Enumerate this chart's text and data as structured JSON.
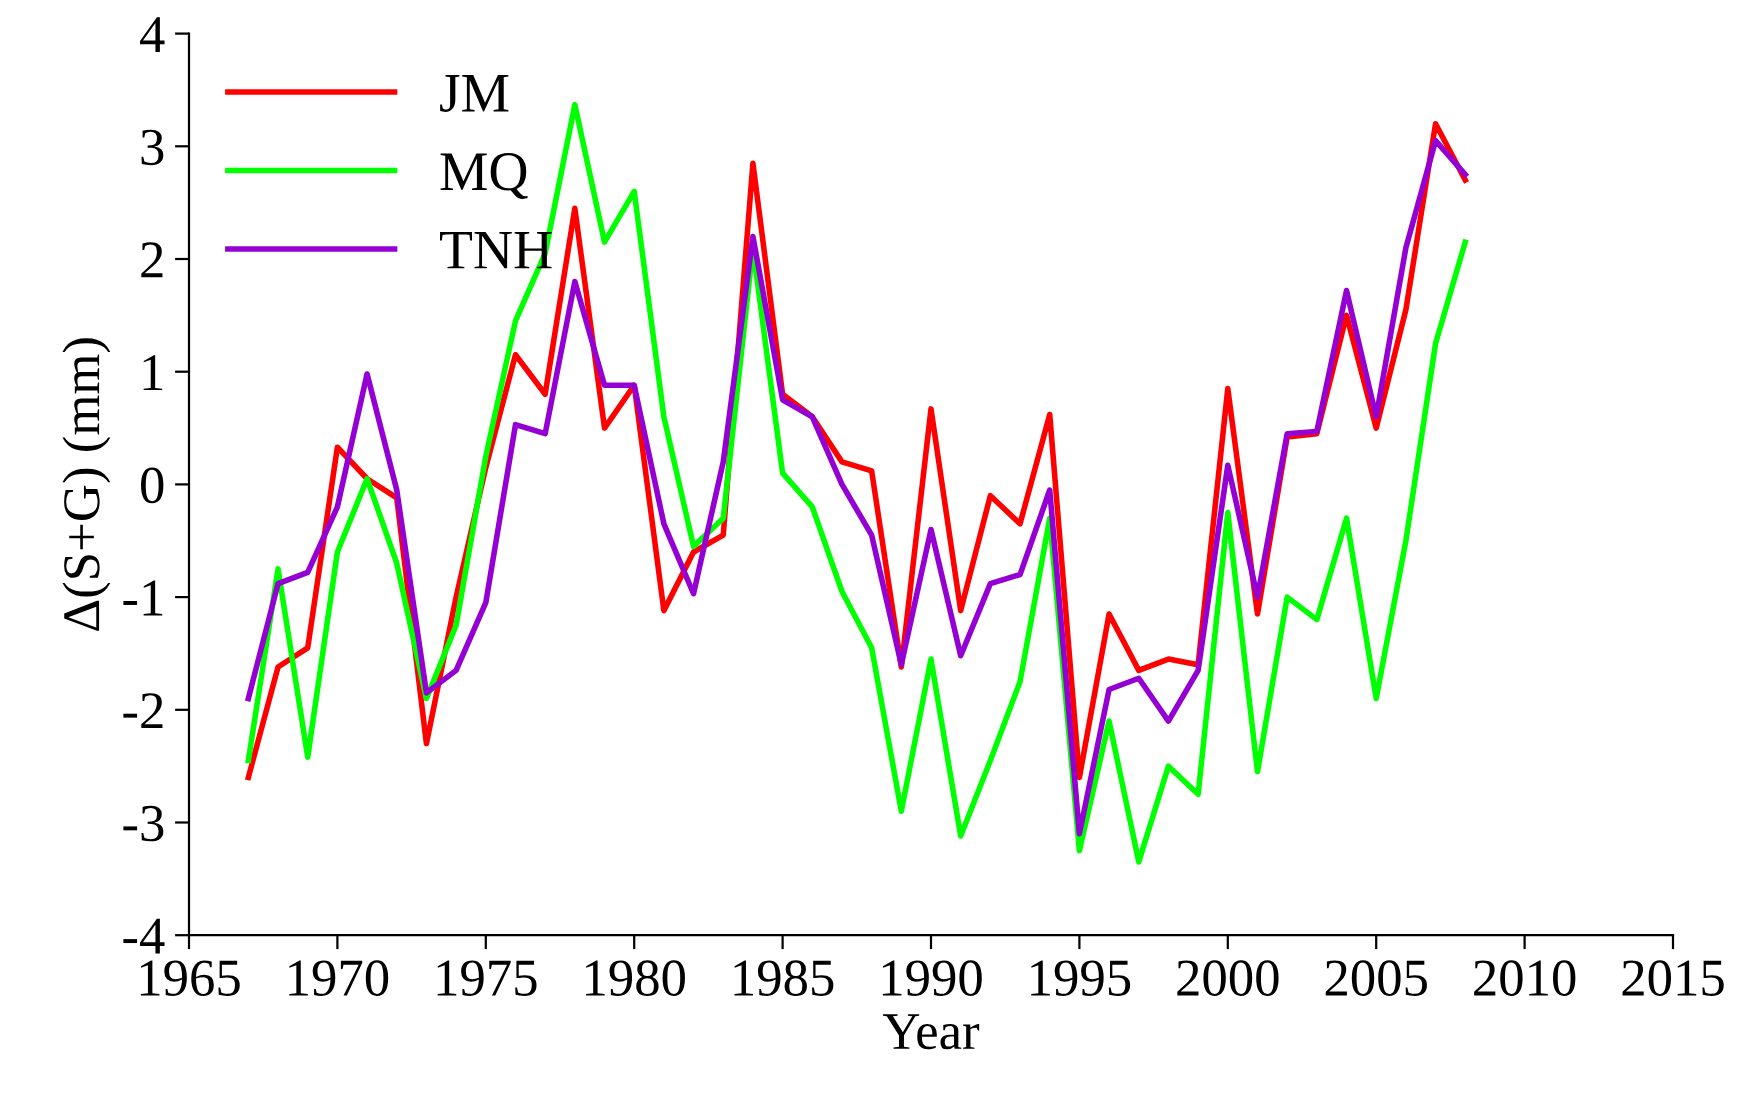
{
  "chart_data": {
    "type": "line",
    "xlabel": "Year",
    "ylabel": "Δ(S+G) (mm)",
    "x": [
      1967,
      1968,
      1969,
      1970,
      1971,
      1972,
      1973,
      1974,
      1975,
      1976,
      1977,
      1978,
      1979,
      1980,
      1981,
      1982,
      1983,
      1984,
      1985,
      1986,
      1987,
      1988,
      1989,
      1990,
      1991,
      1992,
      1993,
      1994,
      1995,
      1996,
      1997,
      1998,
      1999,
      2000,
      2001,
      2002,
      2003,
      2004,
      2005,
      2006,
      2007,
      2008
    ],
    "series": [
      {
        "name": "JM",
        "color": "#ff0000",
        "values": [
          -2.6,
          -1.62,
          -1.45,
          0.33,
          0.05,
          -0.12,
          -2.3,
          -1.0,
          0.15,
          1.15,
          0.8,
          2.45,
          0.5,
          0.88,
          -1.12,
          -0.6,
          -0.45,
          2.85,
          0.8,
          0.6,
          0.2,
          0.12,
          -1.62,
          0.67,
          -1.12,
          -0.1,
          -0.35,
          0.62,
          -2.6,
          -1.15,
          -1.65,
          -1.55,
          -1.6,
          0.85,
          -1.15,
          0.42,
          0.45,
          1.5,
          0.5,
          1.55,
          3.2,
          2.7
        ]
      },
      {
        "name": "MQ",
        "color": "#00ff00",
        "values": [
          -2.45,
          -0.75,
          -2.42,
          -0.6,
          0.05,
          -0.7,
          -1.9,
          -1.25,
          0.25,
          1.45,
          2.05,
          3.37,
          2.15,
          2.6,
          0.6,
          -0.55,
          -0.3,
          2.1,
          0.1,
          -0.2,
          -0.95,
          -1.45,
          -2.9,
          -1.55,
          -3.12,
          -2.45,
          -1.75,
          -0.3,
          -3.25,
          -2.1,
          -3.35,
          -2.5,
          -2.75,
          -0.25,
          -2.55,
          -1.0,
          -1.2,
          -0.3,
          -1.9,
          -0.5,
          1.25,
          2.15
        ]
      },
      {
        "name": "TNH",
        "color": "#9400d3",
        "values": [
          -1.9,
          -0.88,
          -0.78,
          -0.2,
          0.98,
          -0.05,
          -1.85,
          -1.65,
          -1.05,
          0.53,
          0.45,
          1.8,
          0.88,
          0.88,
          -0.35,
          -0.97,
          0.2,
          2.2,
          0.75,
          0.6,
          0.0,
          -0.45,
          -1.6,
          -0.4,
          -1.52,
          -0.88,
          -0.8,
          -0.05,
          -3.1,
          -1.82,
          -1.72,
          -2.1,
          -1.65,
          0.17,
          -1.0,
          0.45,
          0.47,
          1.72,
          0.6,
          2.1,
          3.05,
          2.75
        ]
      }
    ],
    "xlim": [
      1965,
      2015
    ],
    "xticks": [
      1965,
      1970,
      1975,
      1980,
      1985,
      1990,
      1995,
      2000,
      2005,
      2010,
      2015
    ],
    "ylim": [
      -4,
      4
    ],
    "yticks": [
      -4,
      -3,
      -2,
      -1,
      0,
      1,
      2,
      3,
      4
    ],
    "grid": false,
    "legend": "top left",
    "marker": "none",
    "line_style": "solid"
  }
}
